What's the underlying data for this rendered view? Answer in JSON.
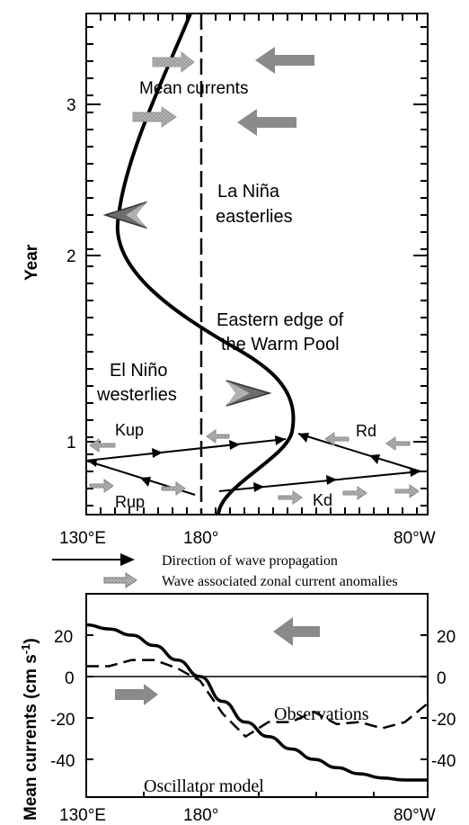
{
  "top_panel": {
    "ylabel": "Year",
    "yticks": [
      "1",
      "2",
      "3"
    ],
    "xticks": [
      "130°E",
      "180°",
      "80°W"
    ],
    "labels": {
      "mean_currents": "Mean currents",
      "la_nina_1": "La Niña",
      "la_nina_2": "easterlies",
      "el_nino_1": "El Niño",
      "el_nino_2": "westerlies",
      "edge_1": "Eastern edge of",
      "edge_2": "the Warm Pool",
      "kup": "Kup",
      "rup": "Rup",
      "rd": "Rd",
      "kd": "Kd"
    }
  },
  "legend": {
    "wave_propagation": "Direction of wave propagation",
    "current_anomalies": "Wave associated zonal current anomalies"
  },
  "bottom_panel": {
    "ylabel": "Mean currents (cm s",
    "ylabel_sup": "-1",
    "ylabel_close": ")",
    "yticks": [
      "20",
      "0",
      "-20",
      "-40"
    ],
    "yticks_right": [
      "20",
      "0",
      "-20",
      "-40"
    ],
    "xticks": [
      "130°E",
      "180°",
      "80°W"
    ],
    "observations_label": "Observations",
    "model_label": "Oscillator model"
  },
  "colors": {
    "ink": "#000000",
    "arrow_gray": "#8a8a8a",
    "arrow_dark": "#6e6e6e"
  },
  "chart_data": {
    "type": "line",
    "x": [
      "130°E",
      "140°E",
      "150°E",
      "160°E",
      "170°E",
      "180°",
      "170°W",
      "160°W",
      "150°W",
      "140°W",
      "130°W",
      "120°W",
      "110°W",
      "100°W",
      "90°W",
      "80°W"
    ],
    "series": [
      {
        "name": "Oscillator model",
        "values": [
          25,
          23,
          20,
          15,
          8,
          0,
          -12,
          -22,
          -29,
          -35,
          -40,
          -44,
          -47,
          -49,
          -50,
          -50
        ]
      },
      {
        "name": "Observations",
        "values": [
          5,
          5,
          8,
          8,
          4,
          -2,
          -18,
          -29,
          -22,
          -22,
          -17,
          -23,
          -22,
          -25,
          -22,
          -13
        ]
      }
    ],
    "xlabel": "",
    "ylabel": "Mean currents (cm s-1)",
    "ylim": [
      -50,
      30
    ]
  }
}
